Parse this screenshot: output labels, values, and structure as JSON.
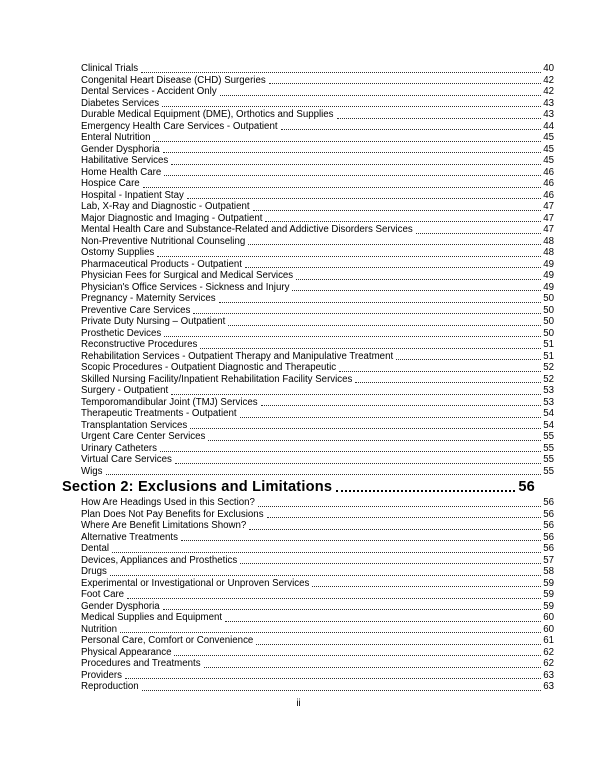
{
  "document": {
    "text_color": "#000000",
    "background_color": "#ffffff",
    "heading_color": "#000000"
  },
  "footer": {
    "page_number": "ii"
  },
  "toc": {
    "items": [
      {
        "type": "entry",
        "label": "Clinical Trials",
        "page": "40"
      },
      {
        "type": "entry",
        "label": "Congenital Heart Disease (CHD) Surgeries",
        "page": "42"
      },
      {
        "type": "entry",
        "label": "Dental Services - Accident Only",
        "page": "42"
      },
      {
        "type": "entry",
        "label": "Diabetes Services",
        "page": "43"
      },
      {
        "type": "entry",
        "label": "Durable Medical Equipment (DME), Orthotics and Supplies",
        "page": "43"
      },
      {
        "type": "entry",
        "label": "Emergency Health Care Services - Outpatient",
        "page": "44"
      },
      {
        "type": "entry",
        "label": "Enteral Nutrition",
        "page": "45"
      },
      {
        "type": "entry",
        "label": "Gender Dysphoria",
        "page": "45"
      },
      {
        "type": "entry",
        "label": "Habilitative Services",
        "page": "45"
      },
      {
        "type": "entry",
        "label": "Home Health Care",
        "page": "46"
      },
      {
        "type": "entry",
        "label": "Hospice Care",
        "page": "46"
      },
      {
        "type": "entry",
        "label": "Hospital - Inpatient Stay",
        "page": "46"
      },
      {
        "type": "entry",
        "label": "Lab, X-Ray and Diagnostic - Outpatient",
        "page": "47"
      },
      {
        "type": "entry",
        "label": "Major Diagnostic and Imaging - Outpatient",
        "page": "47"
      },
      {
        "type": "entry",
        "label": "Mental Health Care and Substance-Related and Addictive Disorders Services",
        "page": "47"
      },
      {
        "type": "entry",
        "label": "Non-Preventive Nutritional Counseling",
        "page": "48"
      },
      {
        "type": "entry",
        "label": "Ostomy Supplies",
        "page": "48"
      },
      {
        "type": "entry",
        "label": "Pharmaceutical Products - Outpatient",
        "page": "49"
      },
      {
        "type": "entry",
        "label": "Physician Fees for Surgical and Medical Services",
        "page": "49"
      },
      {
        "type": "entry",
        "label": "Physician's Office Services - Sickness and Injury",
        "page": "49"
      },
      {
        "type": "entry",
        "label": "Pregnancy - Maternity Services",
        "page": "50"
      },
      {
        "type": "entry",
        "label": "Preventive Care Services",
        "page": "50"
      },
      {
        "type": "entry",
        "label": "Private Duty Nursing – Outpatient",
        "page": "50"
      },
      {
        "type": "entry",
        "label": "Prosthetic Devices",
        "page": "50"
      },
      {
        "type": "entry",
        "label": "Reconstructive Procedures",
        "page": "51"
      },
      {
        "type": "entry",
        "label": "Rehabilitation Services - Outpatient Therapy and Manipulative Treatment",
        "page": "51"
      },
      {
        "type": "entry",
        "label": "Scopic Procedures - Outpatient Diagnostic and Therapeutic",
        "page": "52"
      },
      {
        "type": "entry",
        "label": "Skilled Nursing Facility/Inpatient Rehabilitation Facility Services",
        "page": "52"
      },
      {
        "type": "entry",
        "label": "Surgery - Outpatient",
        "page": "53"
      },
      {
        "type": "entry",
        "label": "Temporomandibular Joint (TMJ) Services",
        "page": "53"
      },
      {
        "type": "entry",
        "label": "Therapeutic Treatments - Outpatient",
        "page": "54"
      },
      {
        "type": "entry",
        "label": "Transplantation Services",
        "page": "54"
      },
      {
        "type": "entry",
        "label": "Urgent Care Center Services",
        "page": "55"
      },
      {
        "type": "entry",
        "label": "Urinary Catheters",
        "page": "55"
      },
      {
        "type": "entry",
        "label": "Virtual Care Services",
        "page": "55"
      },
      {
        "type": "entry",
        "label": "Wigs",
        "page": "55"
      },
      {
        "type": "heading",
        "label": "Section 2: Exclusions and Limitations",
        "page": "56"
      },
      {
        "type": "entry",
        "label": "How Are Headings Used in this Section?",
        "page": "56"
      },
      {
        "type": "entry",
        "label": "Plan Does Not Pay Benefits for Exclusions",
        "page": "56"
      },
      {
        "type": "entry",
        "label": "Where Are Benefit Limitations Shown?",
        "page": "56"
      },
      {
        "type": "entry",
        "label": "Alternative Treatments",
        "page": "56"
      },
      {
        "type": "entry",
        "label": "Dental",
        "page": "56"
      },
      {
        "type": "entry",
        "label": "Devices, Appliances and Prosthetics",
        "page": "57"
      },
      {
        "type": "entry",
        "label": "Drugs",
        "page": "58"
      },
      {
        "type": "entry",
        "label": "Experimental or Investigational or Unproven Services",
        "page": "59"
      },
      {
        "type": "entry",
        "label": "Foot Care",
        "page": "59"
      },
      {
        "type": "entry",
        "label": "Gender Dysphoria",
        "page": "59"
      },
      {
        "type": "entry",
        "label": "Medical Supplies and Equipment",
        "page": "60"
      },
      {
        "type": "entry",
        "label": "Nutrition",
        "page": "60"
      },
      {
        "type": "entry",
        "label": "Personal Care, Comfort or Convenience",
        "page": "61"
      },
      {
        "type": "entry",
        "label": "Physical Appearance",
        "page": "62"
      },
      {
        "type": "entry",
        "label": "Procedures and Treatments",
        "page": "62"
      },
      {
        "type": "entry",
        "label": "Providers",
        "page": "63"
      },
      {
        "type": "entry",
        "label": "Reproduction",
        "page": "63"
      }
    ]
  }
}
